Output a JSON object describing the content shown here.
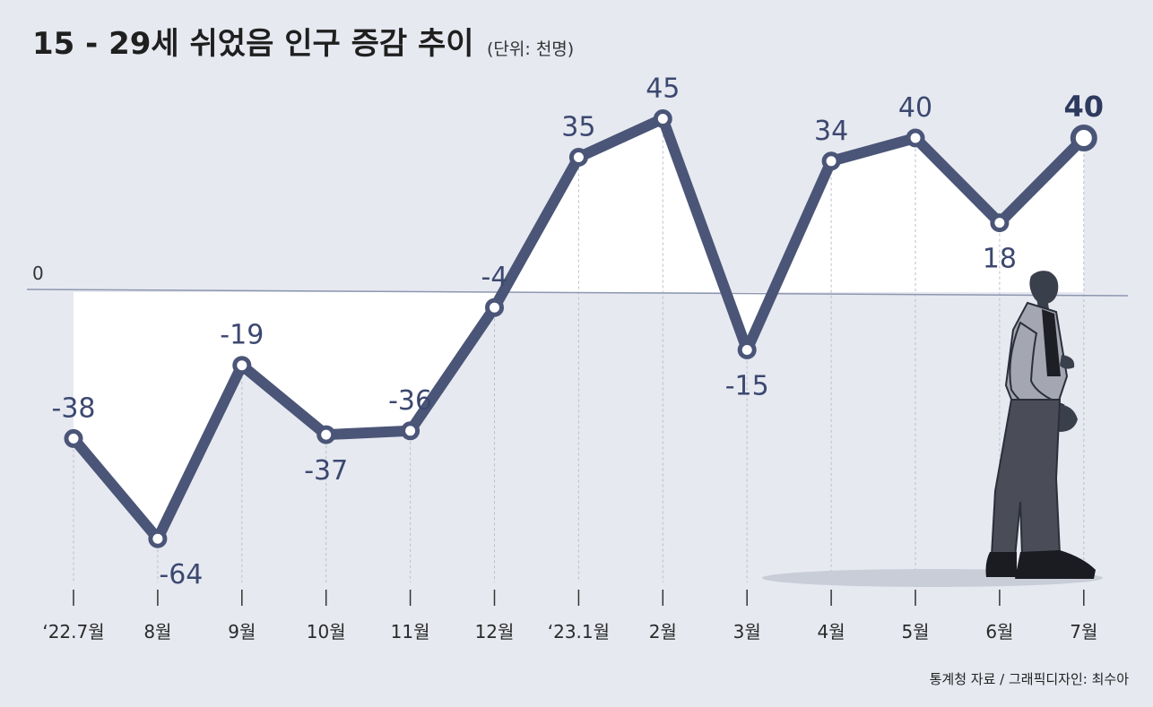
{
  "header": {
    "title": "15 - 29세 쉬었음 인구 증감 추이",
    "unit": "(단위: 천명)"
  },
  "source": "통계청 자료 / 그래픽디자인: 최수아",
  "colors": {
    "background": "#e6e9f0",
    "line": "#4a5577",
    "point_fill": "#ffffff",
    "label": "#3c4870",
    "positive_fill": "#ffffff"
  },
  "chart_data": {
    "type": "line",
    "title": "15 - 29세 쉬었음 인구 증감 추이",
    "unit": "(단위: 천명)",
    "categories": [
      "‘22.7월",
      "8월",
      "9월",
      "10월",
      "11월",
      "12월",
      "‘23.1월",
      "2월",
      "3월",
      "4월",
      "5월",
      "6월",
      "7월"
    ],
    "series": [
      {
        "values": [
          -38,
          -64,
          -19,
          -37,
          -36,
          -4,
          35,
          45,
          -15,
          34,
          40,
          18,
          40
        ]
      }
    ],
    "data_labels": [
      "-38",
      "-64",
      "-19",
      "-37",
      "-36",
      "-4",
      "35",
      "45",
      "-15",
      "34",
      "40",
      "18",
      "40"
    ],
    "zero_label": "0",
    "grid": false,
    "illustration": "man-walking-illustration"
  }
}
